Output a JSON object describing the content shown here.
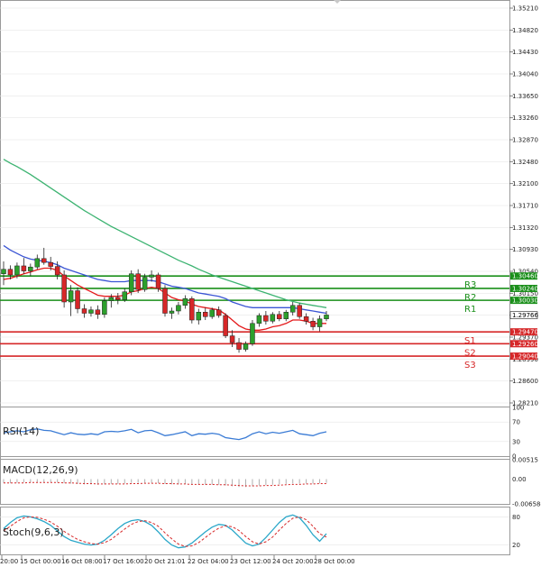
{
  "chart_data": {
    "type": "candlestick",
    "instrument_note": "",
    "colors": {
      "bull_candle": "#2ca02c",
      "bear_candle": "#d62728",
      "ma_fast": "#e41a1c",
      "ma_mid": "#3b55d4",
      "ma_slow": "#3cb371",
      "resistance": "#1a8f1a",
      "support": "#d62728",
      "grid": "#e6e6e6",
      "panel_border": "#9a9a9a",
      "rsi_line": "#3a7bd5",
      "macd_signal": "#d62728",
      "stoch_main": "#2aa7c9",
      "stoch_signal": "#d62728"
    },
    "price_axis": {
      "min": 1.2821,
      "max": 1.3521,
      "ticks": [
        "1.35210",
        "1.34820",
        "1.34430",
        "1.34040",
        "1.33650",
        "1.33260",
        "1.32870",
        "1.32480",
        "1.32100",
        "1.31710",
        "1.31320",
        "1.30930",
        "1.30540",
        "1.30150",
        "1.29766",
        "1.29370",
        "1.28990",
        "1.28600",
        "1.28210"
      ]
    },
    "current_price": "1.29766",
    "levels": [
      {
        "name": "R3",
        "value": 1.3046,
        "label": "1.30460",
        "kind": "resistance"
      },
      {
        "name": "R2",
        "value": 1.3024,
        "label": "1.30240",
        "kind": "resistance"
      },
      {
        "name": "R1",
        "value": 1.3003,
        "label": "1.30030",
        "kind": "resistance"
      },
      {
        "name": "S1",
        "value": 1.2947,
        "label": "1.29470",
        "kind": "support"
      },
      {
        "name": "S2",
        "value": 1.2926,
        "label": "1.29260",
        "kind": "support"
      },
      {
        "name": "S3",
        "value": 1.2904,
        "label": "1.29040",
        "kind": "support"
      }
    ],
    "time_labels": [
      "20:00",
      "15 Oct 00:00",
      "16 Oct 08:00",
      "17 Oct 16:00",
      "20 Oct 21:01",
      "22 Oct 04:00",
      "23 Oct 12:00",
      "24 Oct 20:00",
      "28 Oct 00:00"
    ],
    "candles": [
      {
        "o": 1.305,
        "h": 1.3072,
        "l": 1.303,
        "c": 1.3058
      },
      {
        "o": 1.3058,
        "h": 1.3065,
        "l": 1.304,
        "c": 1.3048
      },
      {
        "o": 1.3048,
        "h": 1.307,
        "l": 1.3042,
        "c": 1.3064
      },
      {
        "o": 1.3064,
        "h": 1.3078,
        "l": 1.305,
        "c": 1.3055
      },
      {
        "o": 1.3055,
        "h": 1.3068,
        "l": 1.3046,
        "c": 1.3062
      },
      {
        "o": 1.3062,
        "h": 1.3084,
        "l": 1.3058,
        "c": 1.3077
      },
      {
        "o": 1.3077,
        "h": 1.3096,
        "l": 1.3066,
        "c": 1.307
      },
      {
        "o": 1.307,
        "h": 1.308,
        "l": 1.3056,
        "c": 1.3063
      },
      {
        "o": 1.3063,
        "h": 1.3072,
        "l": 1.304,
        "c": 1.3048
      },
      {
        "o": 1.3048,
        "h": 1.3056,
        "l": 1.299,
        "c": 1.3
      },
      {
        "o": 1.3,
        "h": 1.303,
        "l": 1.2975,
        "c": 1.302
      },
      {
        "o": 1.302,
        "h": 1.3026,
        "l": 1.298,
        "c": 1.2988
      },
      {
        "o": 1.2988,
        "h": 1.2996,
        "l": 1.2972,
        "c": 1.298
      },
      {
        "o": 1.298,
        "h": 1.2992,
        "l": 1.2974,
        "c": 1.2986
      },
      {
        "o": 1.2986,
        "h": 1.2994,
        "l": 1.297,
        "c": 1.2978
      },
      {
        "o": 1.2978,
        "h": 1.3008,
        "l": 1.2972,
        "c": 1.3002
      },
      {
        "o": 1.3002,
        "h": 1.3014,
        "l": 1.299,
        "c": 1.3008
      },
      {
        "o": 1.3008,
        "h": 1.3016,
        "l": 1.2996,
        "c": 1.3004
      },
      {
        "o": 1.3004,
        "h": 1.3024,
        "l": 1.3,
        "c": 1.3018
      },
      {
        "o": 1.3018,
        "h": 1.3056,
        "l": 1.3012,
        "c": 1.305
      },
      {
        "o": 1.305,
        "h": 1.3058,
        "l": 1.3016,
        "c": 1.3022
      },
      {
        "o": 1.3022,
        "h": 1.305,
        "l": 1.3018,
        "c": 1.3044
      },
      {
        "o": 1.3044,
        "h": 1.3056,
        "l": 1.3036,
        "c": 1.3048
      },
      {
        "o": 1.3048,
        "h": 1.3052,
        "l": 1.3018,
        "c": 1.3024
      },
      {
        "o": 1.3024,
        "h": 1.303,
        "l": 1.2974,
        "c": 1.298
      },
      {
        "o": 1.298,
        "h": 1.299,
        "l": 1.297,
        "c": 1.2984
      },
      {
        "o": 1.2984,
        "h": 1.3,
        "l": 1.2978,
        "c": 1.2994
      },
      {
        "o": 1.2994,
        "h": 1.3012,
        "l": 1.2988,
        "c": 1.3006
      },
      {
        "o": 1.3006,
        "h": 1.301,
        "l": 1.2962,
        "c": 1.2968
      },
      {
        "o": 1.2968,
        "h": 1.2988,
        "l": 1.296,
        "c": 1.2982
      },
      {
        "o": 1.2982,
        "h": 1.299,
        "l": 1.2968,
        "c": 1.2974
      },
      {
        "o": 1.2974,
        "h": 1.299,
        "l": 1.297,
        "c": 1.2986
      },
      {
        "o": 1.2986,
        "h": 1.2992,
        "l": 1.2972,
        "c": 1.2976
      },
      {
        "o": 1.2976,
        "h": 1.298,
        "l": 1.2936,
        "c": 1.294
      },
      {
        "o": 1.294,
        "h": 1.295,
        "l": 1.292,
        "c": 1.2928
      },
      {
        "o": 1.2928,
        "h": 1.2936,
        "l": 1.291,
        "c": 1.2916
      },
      {
        "o": 1.2916,
        "h": 1.293,
        "l": 1.2912,
        "c": 1.2926
      },
      {
        "o": 1.2926,
        "h": 1.2968,
        "l": 1.2922,
        "c": 1.2962
      },
      {
        "o": 1.2962,
        "h": 1.298,
        "l": 1.2956,
        "c": 1.2976
      },
      {
        "o": 1.2976,
        "h": 1.2984,
        "l": 1.296,
        "c": 1.2966
      },
      {
        "o": 1.2966,
        "h": 1.2982,
        "l": 1.2962,
        "c": 1.2978
      },
      {
        "o": 1.2978,
        "h": 1.2984,
        "l": 1.2966,
        "c": 1.297
      },
      {
        "o": 1.297,
        "h": 1.2986,
        "l": 1.2966,
        "c": 1.2982
      },
      {
        "o": 1.2982,
        "h": 1.3,
        "l": 1.2976,
        "c": 1.2994
      },
      {
        "o": 1.2994,
        "h": 1.2998,
        "l": 1.297,
        "c": 1.2974
      },
      {
        "o": 1.2974,
        "h": 1.298,
        "l": 1.296,
        "c": 1.2966
      },
      {
        "o": 1.2966,
        "h": 1.2972,
        "l": 1.295,
        "c": 1.2956
      },
      {
        "o": 1.2956,
        "h": 1.2976,
        "l": 1.2948,
        "c": 1.297
      },
      {
        "o": 1.297,
        "h": 1.2984,
        "l": 1.2966,
        "c": 1.2977
      }
    ],
    "ma_fast": [
      1.304,
      1.3042,
      1.3046,
      1.305,
      1.3053,
      1.3057,
      1.306,
      1.306,
      1.3056,
      1.3046,
      1.3038,
      1.303,
      1.3024,
      1.3018,
      1.3012,
      1.301,
      1.301,
      1.301,
      1.3012,
      1.3018,
      1.302,
      1.3024,
      1.3026,
      1.3024,
      1.3016,
      1.3008,
      1.3004,
      1.3002,
      1.2996,
      1.2992,
      1.299,
      1.2988,
      1.2986,
      1.2978,
      1.2968,
      1.2958,
      1.2952,
      1.295,
      1.295,
      1.2952,
      1.2956,
      1.2958,
      1.2962,
      1.2968,
      1.2968,
      1.2966,
      1.2962,
      1.2962,
      1.2962
    ],
    "ma_mid": [
      1.31,
      1.3092,
      1.3086,
      1.308,
      1.3076,
      1.3074,
      1.3072,
      1.307,
      1.3066,
      1.306,
      1.3056,
      1.3052,
      1.3048,
      1.3044,
      1.304,
      1.3038,
      1.3036,
      1.3036,
      1.3036,
      1.3038,
      1.3038,
      1.3038,
      1.3038,
      1.3036,
      1.3032,
      1.3028,
      1.3026,
      1.3024,
      1.302,
      1.3016,
      1.3014,
      1.3012,
      1.301,
      1.3006,
      1.3,
      1.2996,
      1.2992,
      1.299,
      1.299,
      1.299,
      1.299,
      1.299,
      1.299,
      1.299,
      1.2988,
      1.2986,
      1.2984,
      1.2982,
      1.298
    ],
    "ma_slow": [
      1.3253,
      1.3246,
      1.324,
      1.3233,
      1.3226,
      1.3218,
      1.321,
      1.3202,
      1.3194,
      1.3186,
      1.3178,
      1.317,
      1.3162,
      1.3155,
      1.3148,
      1.3141,
      1.3134,
      1.3128,
      1.3122,
      1.3116,
      1.311,
      1.3104,
      1.3098,
      1.3092,
      1.3086,
      1.308,
      1.3074,
      1.3069,
      1.3064,
      1.3058,
      1.3053,
      1.3048,
      1.3044,
      1.304,
      1.3036,
      1.3032,
      1.3028,
      1.3024,
      1.302,
      1.3016,
      1.3012,
      1.3008,
      1.3004,
      1.3001,
      1.2998,
      1.2996,
      1.2994,
      1.2992,
      1.299
    ],
    "indicators": {
      "rsi": {
        "label": "RSI(14)",
        "ticks": [
          "100",
          "70",
          "30",
          "0"
        ],
        "values": [
          48,
          50,
          52,
          50,
          54,
          56,
          53,
          52,
          48,
          44,
          48,
          45,
          44,
          46,
          44,
          50,
          51,
          50,
          52,
          55,
          48,
          52,
          53,
          48,
          42,
          44,
          47,
          50,
          42,
          46,
          45,
          47,
          45,
          38,
          36,
          34,
          38,
          46,
          50,
          46,
          49,
          47,
          50,
          53,
          46,
          44,
          42,
          47,
          50
        ]
      },
      "macd": {
        "label": "MACD(12,26,9)",
        "ticks": [
          "0.00515",
          "0.00",
          "-0.006584"
        ],
        "hist": [
          -0.001,
          -0.0011,
          -0.001,
          -0.0009,
          -0.0009,
          -0.0008,
          -0.0008,
          -0.0008,
          -0.0009,
          -0.0011,
          -0.0012,
          -0.0013,
          -0.0014,
          -0.0014,
          -0.0015,
          -0.0014,
          -0.0013,
          -0.0013,
          -0.0012,
          -0.001,
          -0.001,
          -0.001,
          -0.001,
          -0.0011,
          -0.0013,
          -0.0014,
          -0.0014,
          -0.0013,
          -0.0015,
          -0.0015,
          -0.0015,
          -0.0015,
          -0.0015,
          -0.0017,
          -0.0019,
          -0.0021,
          -0.0021,
          -0.0019,
          -0.0017,
          -0.0016,
          -0.0015,
          -0.0014,
          -0.0013,
          -0.0012,
          -0.0012,
          -0.0012,
          -0.0012,
          -0.0011,
          -0.001
        ],
        "signal": [
          -0.001,
          -0.001,
          -0.001,
          -0.001,
          -0.0009,
          -0.0009,
          -0.0009,
          -0.0009,
          -0.0009,
          -0.001,
          -0.001,
          -0.0011,
          -0.0012,
          -0.0012,
          -0.0013,
          -0.0013,
          -0.0013,
          -0.0013,
          -0.0013,
          -0.0012,
          -0.0012,
          -0.0011,
          -0.0011,
          -0.0011,
          -0.0012,
          -0.0012,
          -0.0013,
          -0.0013,
          -0.0014,
          -0.0014,
          -0.0014,
          -0.0014,
          -0.0015,
          -0.0015,
          -0.0016,
          -0.0017,
          -0.0018,
          -0.0018,
          -0.0018,
          -0.0017,
          -0.0017,
          -0.0016,
          -0.0015,
          -0.0014,
          -0.0014,
          -0.0013,
          -0.0013,
          -0.0012,
          -0.0012
        ]
      },
      "stoch": {
        "label": "Stoch(9,6,3)",
        "ticks": [
          "80",
          "20"
        ],
        "main": [
          55,
          68,
          78,
          82,
          80,
          76,
          70,
          62,
          50,
          38,
          30,
          26,
          22,
          20,
          22,
          30,
          42,
          55,
          66,
          72,
          74,
          70,
          62,
          48,
          32,
          20,
          14,
          16,
          24,
          36,
          48,
          58,
          64,
          62,
          52,
          38,
          24,
          18,
          22,
          36,
          52,
          68,
          80,
          84,
          78,
          62,
          42,
          28,
          44
        ],
        "signal": [
          50,
          60,
          70,
          78,
          80,
          79,
          75,
          69,
          60,
          49,
          40,
          32,
          27,
          23,
          22,
          25,
          32,
          43,
          54,
          64,
          70,
          72,
          68,
          60,
          46,
          33,
          22,
          17,
          18,
          25,
          36,
          47,
          56,
          61,
          59,
          51,
          38,
          27,
          22,
          27,
          37,
          52,
          66,
          77,
          80,
          74,
          60,
          44,
          37
        ]
      }
    }
  }
}
